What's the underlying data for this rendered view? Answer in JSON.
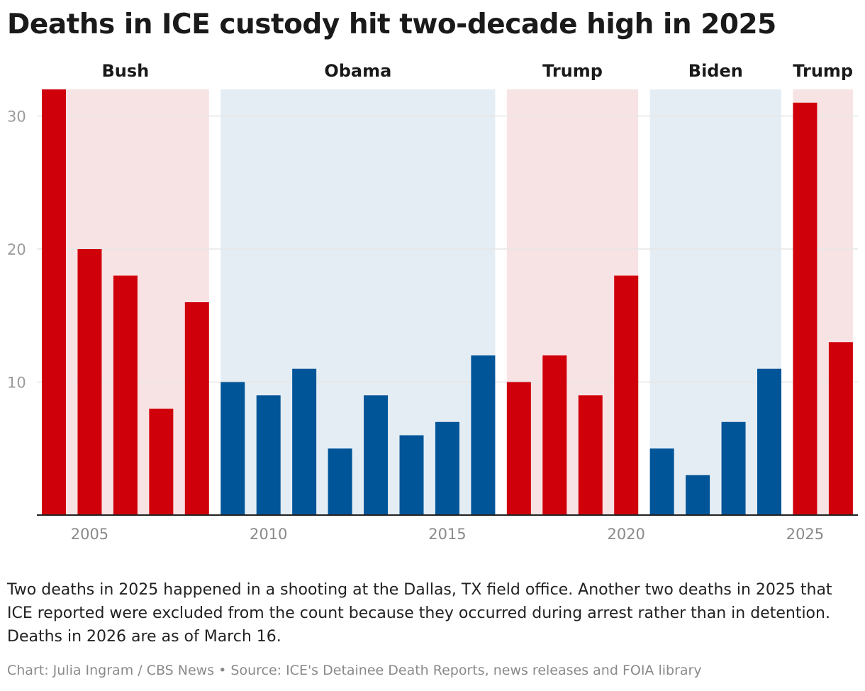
{
  "chart_data": {
    "type": "bar",
    "title": "Deaths in ICE custody hit two-decade high in 2025",
    "x": [
      2004,
      2005,
      2006,
      2007,
      2008,
      2009,
      2010,
      2011,
      2012,
      2013,
      2014,
      2015,
      2016,
      2017,
      2018,
      2019,
      2020,
      2021,
      2022,
      2023,
      2024,
      2025,
      2026
    ],
    "values": [
      32,
      20,
      18,
      8,
      16,
      10,
      9,
      11,
      5,
      9,
      6,
      7,
      12,
      10,
      12,
      9,
      18,
      5,
      3,
      7,
      11,
      31,
      13
    ],
    "ylim": [
      0,
      32
    ],
    "yticks": [
      10,
      20,
      30
    ],
    "xticks": [
      2005,
      2010,
      2015,
      2020,
      2025
    ],
    "grid": true,
    "xlabel": "",
    "ylabel": "",
    "administrations": [
      {
        "label": "Bush",
        "party": "R",
        "start": 2004,
        "end": 2008
      },
      {
        "label": "Obama",
        "party": "D",
        "start": 2009,
        "end": 2016
      },
      {
        "label": "Trump",
        "party": "R",
        "start": 2017,
        "end": 2020
      },
      {
        "label": "Biden",
        "party": "D",
        "start": 2021,
        "end": 2024
      },
      {
        "label": "Trump",
        "party": "R",
        "start": 2025,
        "end": 2026
      }
    ],
    "colors": {
      "R": "#d0000a",
      "D": "#005599",
      "R_bg": "#f8e3e4",
      "D_bg": "#e5edf4"
    }
  },
  "note": "Two deaths in 2025 happened in a shooting at the Dallas, TX field office. Another two deaths in 2025 that ICE reported were excluded from the count because they occurred during arrest rather than in detention. Deaths in 2026 are as of March 16.",
  "credit": "Chart: Julia Ingram / CBS News • Source: ICE's Detainee Death Reports, news releases and FOIA library"
}
